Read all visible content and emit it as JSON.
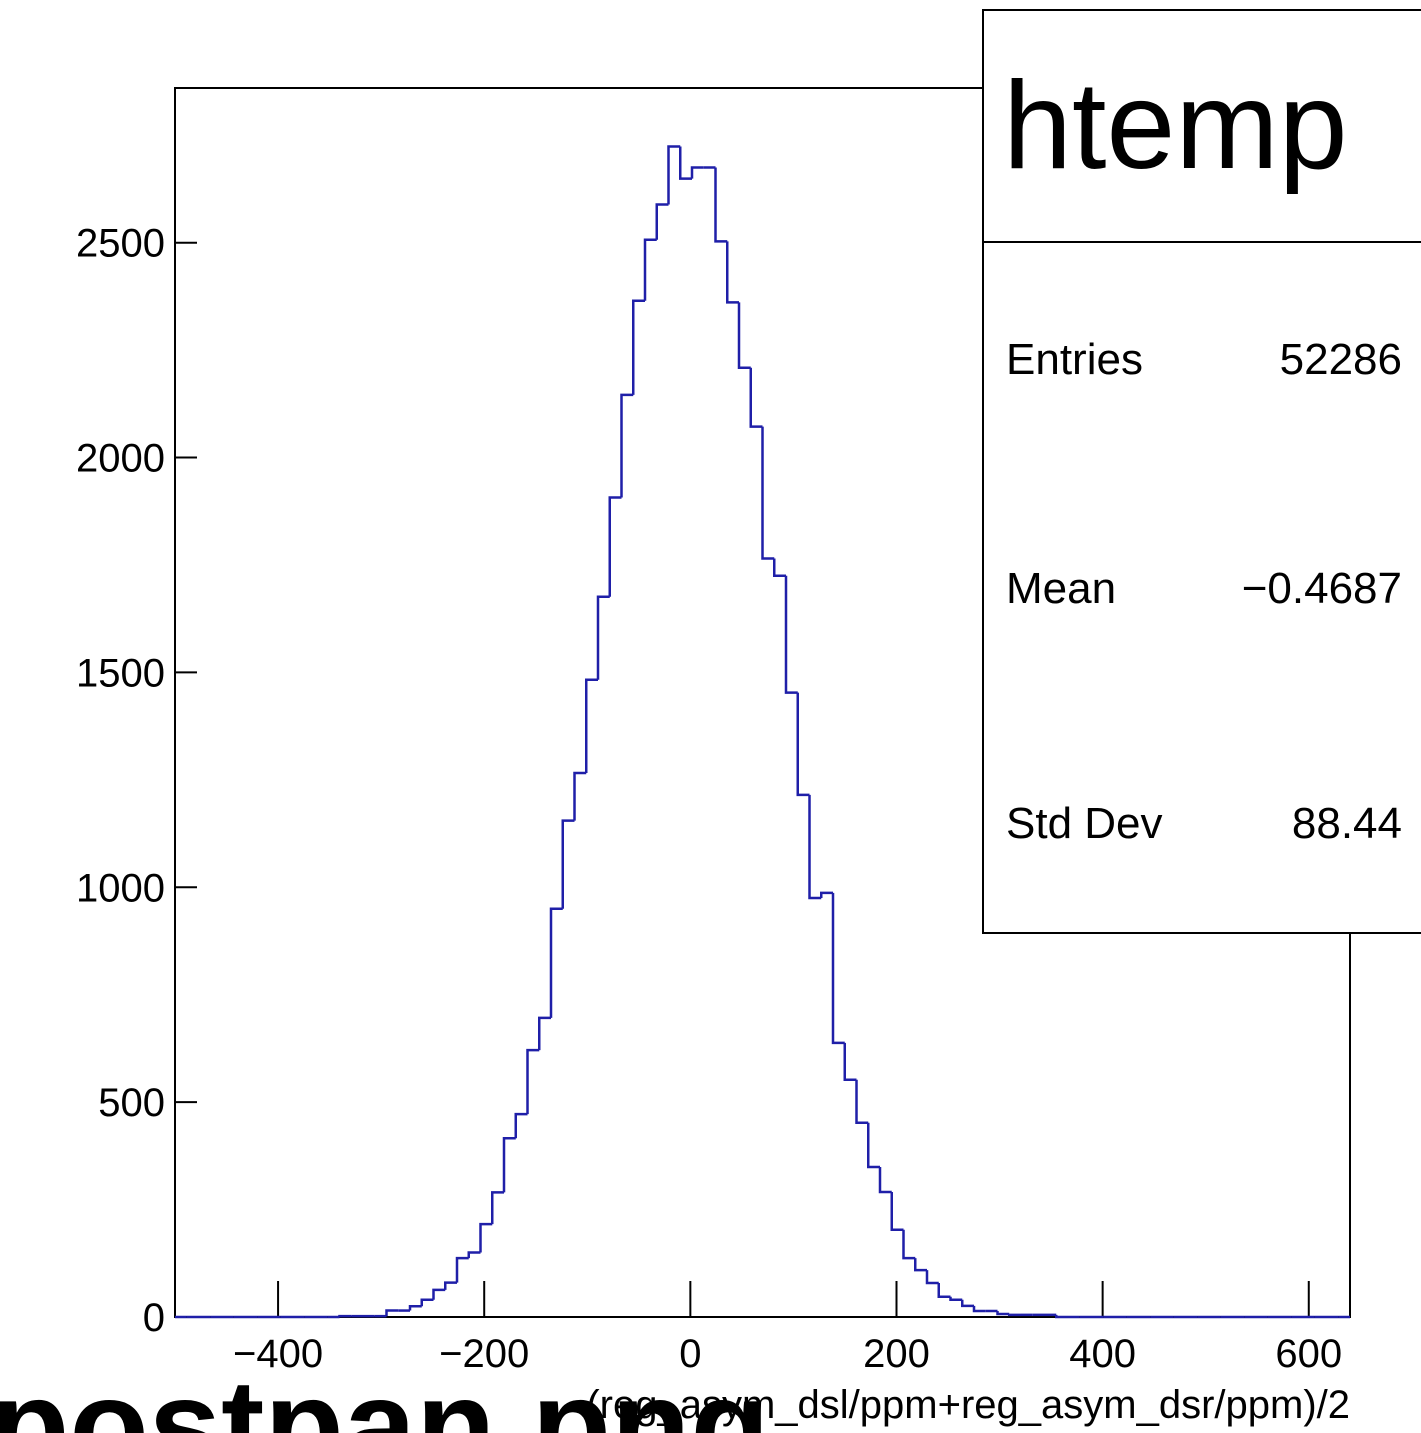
{
  "chart_data": {
    "type": "histogram",
    "x_label": "(reg_asym_dsl/ppm+reg_asym_dsr/ppm)/2",
    "annotation": "postpan.png",
    "color": "#1f1fa8",
    "xlim": [
      -500,
      640
    ],
    "ylim": [
      0,
      2860
    ],
    "xticks": [
      {
        "value": -400,
        "label": "−400"
      },
      {
        "value": -200,
        "label": "−200"
      },
      0,
      200,
      400,
      600
    ],
    "yticks": [
      0,
      500,
      1000,
      1500,
      2000,
      2500
    ],
    "bins": [
      -500,
      -488.6,
      -477.2,
      -465.8,
      -454.4,
      -443,
      -431.6,
      -420.2,
      -408.8,
      -397.4,
      -386,
      -374.6,
      -363.2,
      -351.8,
      -340.4,
      -329,
      -317.6,
      -306.2,
      -294.8,
      -283.4,
      -272,
      -260.6,
      -249.2,
      -237.8,
      -226.4,
      -215,
      -203.6,
      -192.2,
      -180.8,
      -169.4,
      -158,
      -146.6,
      -135.2,
      -123.8,
      -112.4,
      -101,
      -89.6,
      -78.2,
      -66.8,
      -55.4,
      -44,
      -32.6,
      -21.2,
      -9.8,
      1.6,
      13,
      24.4,
      35.8,
      47.2,
      58.6,
      70,
      81.4,
      92.8,
      104.2,
      115.6,
      127,
      138.4,
      149.8,
      161.2,
      172.6,
      184,
      195.4,
      206.8,
      218.2,
      229.6,
      241,
      252.4,
      263.8,
      275.2,
      286.6,
      298,
      309.4,
      320.8,
      332.2,
      343.6,
      355,
      366.4,
      377.8,
      389.2,
      400.6,
      412,
      423.4,
      434.8,
      446.2,
      457.6,
      469,
      480.4,
      491.8,
      503.2,
      514.6,
      526,
      537.4,
      548.8,
      560.2,
      571.6,
      583,
      594.4,
      605.8,
      617.2,
      628.6,
      640
    ],
    "counts": [
      0,
      0,
      0,
      0,
      0,
      0,
      0,
      0,
      0,
      0,
      0,
      0,
      0,
      0,
      2,
      2,
      2,
      2,
      15,
      15,
      25,
      40,
      63,
      80,
      137,
      150,
      216,
      290,
      416,
      472,
      621,
      696,
      950,
      1155,
      1266,
      1483,
      1676,
      1907,
      2146,
      2365,
      2507,
      2589,
      2724,
      2649,
      2675,
      2675,
      2503,
      2361,
      2209,
      2072,
      1765,
      1725,
      1453,
      1215,
      975,
      987,
      638,
      552,
      452,
      349,
      291,
      203,
      137,
      109,
      79,
      47,
      40,
      26,
      14,
      14,
      7,
      5,
      5,
      5,
      5,
      0,
      0,
      0,
      0,
      0,
      0,
      0,
      0,
      0,
      0,
      0,
      0,
      0,
      0,
      0,
      0,
      0,
      0,
      0,
      0,
      0,
      0,
      0,
      0,
      0
    ],
    "stats_box": {
      "title": "htemp",
      "entries": [
        {
          "label": "Entries",
          "value": "52286"
        },
        {
          "label": "Mean",
          "value": "−0.4687"
        },
        {
          "label": "Std Dev",
          "value": "88.44"
        }
      ]
    }
  }
}
